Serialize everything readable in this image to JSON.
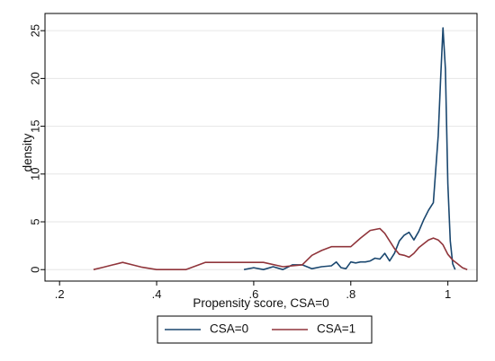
{
  "chart_data": {
    "type": "line",
    "title": "",
    "xlabel": "Propensity score, CSA=0",
    "ylabel": "density",
    "xlim": [
      0.17,
      1.06
    ],
    "ylim": [
      -1.2,
      26.8
    ],
    "x_ticks": [
      {
        "value": 0.2,
        "label": ".2"
      },
      {
        "value": 0.4,
        "label": ".4"
      },
      {
        "value": 0.6,
        "label": ".6"
      },
      {
        "value": 0.8,
        "label": ".8"
      },
      {
        "value": 1.0,
        "label": "1"
      }
    ],
    "y_ticks": [
      {
        "value": 0,
        "label": "0"
      },
      {
        "value": 5,
        "label": "5"
      },
      {
        "value": 10,
        "label": "10"
      },
      {
        "value": 15,
        "label": "15"
      },
      {
        "value": 20,
        "label": "20"
      },
      {
        "value": 25,
        "label": "25"
      }
    ],
    "grid": "horizontal",
    "legend_position": "bottom",
    "series": [
      {
        "name": "CSA=0",
        "color": "#1a476f",
        "x": [
          0.58,
          0.6,
          0.62,
          0.64,
          0.66,
          0.68,
          0.7,
          0.72,
          0.74,
          0.76,
          0.77,
          0.78,
          0.79,
          0.8,
          0.81,
          0.82,
          0.83,
          0.84,
          0.85,
          0.86,
          0.87,
          0.88,
          0.89,
          0.9,
          0.91,
          0.92,
          0.93,
          0.94,
          0.95,
          0.96,
          0.97,
          0.98,
          0.985,
          0.99,
          0.995,
          1.0,
          1.005,
          1.01,
          1.015
        ],
        "y": [
          0,
          0.2,
          0,
          0.3,
          0,
          0.5,
          0.5,
          0.1,
          0.3,
          0.4,
          0.8,
          0.2,
          0.1,
          0.8,
          0.7,
          0.8,
          0.8,
          0.9,
          1.2,
          1.1,
          1.7,
          0.9,
          1.7,
          3.0,
          3.6,
          3.9,
          3.1,
          4.0,
          5.2,
          6.2,
          7.0,
          14.0,
          20.0,
          25.3,
          21.0,
          9.0,
          3.0,
          0.6,
          0
        ]
      },
      {
        "name": "CSA=1",
        "color": "#90353b",
        "x": [
          0.27,
          0.29,
          0.31,
          0.33,
          0.35,
          0.37,
          0.4,
          0.43,
          0.46,
          0.5,
          0.54,
          0.58,
          0.62,
          0.66,
          0.7,
          0.72,
          0.74,
          0.76,
          0.78,
          0.8,
          0.82,
          0.84,
          0.86,
          0.87,
          0.88,
          0.89,
          0.9,
          0.91,
          0.92,
          0.93,
          0.94,
          0.95,
          0.96,
          0.97,
          0.98,
          0.99,
          1.0,
          1.01,
          1.02,
          1.03,
          1.04
        ],
        "y": [
          0,
          0.25,
          0.5,
          0.75,
          0.5,
          0.25,
          0,
          0,
          0,
          0.75,
          0.75,
          0.75,
          0.75,
          0.3,
          0.5,
          1.5,
          2.0,
          2.4,
          2.4,
          2.4,
          3.3,
          4.1,
          4.3,
          3.8,
          3.0,
          2.2,
          1.6,
          1.5,
          1.3,
          1.7,
          2.3,
          2.7,
          3.1,
          3.3,
          3.1,
          2.6,
          1.6,
          1.0,
          0.6,
          0.2,
          0
        ]
      }
    ]
  }
}
